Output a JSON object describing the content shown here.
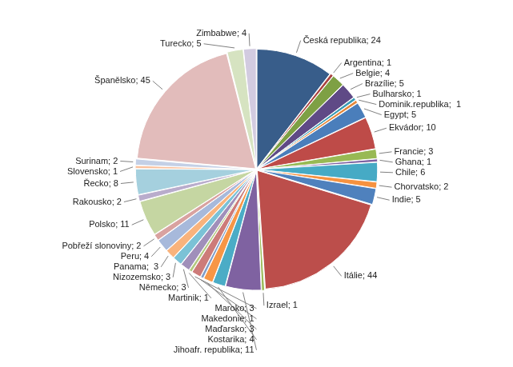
{
  "chart_data": {
    "type": "pie",
    "categories": [
      "Česká republika",
      "Argentina",
      "Belgie",
      "Brazílie",
      "Bulharsko",
      "Dominik.republika",
      "Egypt",
      "Ekvádor",
      "Francie",
      "Ghana",
      "Chile",
      "Chorvatsko",
      "Indie",
      "Itálie",
      "Izrael",
      "Jihoafr. republika",
      "Kostarika",
      "Maďarsko",
      "Makedonie",
      "Maroko",
      "Martinik",
      "Německo",
      "Nizozemsko",
      "Panama",
      "Peru",
      "Pobřeží slonoviny",
      "Polsko",
      "Rakousko",
      "Řecko",
      "Slovensko",
      "Surinam",
      "Španělsko",
      "Turecko",
      "Zimbabwe"
    ],
    "values": [
      24,
      1,
      4,
      5,
      1,
      1,
      5,
      10,
      3,
      1,
      6,
      2,
      5,
      44,
      1,
      11,
      4,
      3,
      1,
      3,
      1,
      3,
      3,
      3,
      4,
      2,
      11,
      2,
      8,
      1,
      2,
      45,
      5,
      4
    ],
    "value_labels": [
      "Česká republika; 24",
      "Argentina; 1",
      "Belgie; 4",
      "Brazílie; 5",
      "Bulharsko; 1",
      "Dominik.republika;  1",
      "Egypt; 5",
      "Ekvádor; 10",
      "Francie; 3",
      "Ghana; 1",
      "Chile; 6",
      "Chorvatsko; 2",
      "Indie; 5",
      "Itálie; 44",
      "Izrael; 1",
      "Jihoafr. republika; 11",
      "Kostarika; 4",
      "Maďarsko; 3",
      "Makedonie; 1",
      "Maroko; 3",
      "Martinik; 1",
      "Německo; 3",
      "Nizozemsko; 3",
      "Panama;  3",
      "Peru; 4",
      "Pobřeží slonoviny; 2",
      "Polsko; 11",
      "Rakousko; 2",
      "Řecko; 8",
      "Slovensko; 1",
      "Surinam; 2",
      "Španělsko; 45",
      "Turecko; 5",
      "Zimbabwe; 4"
    ],
    "colors": [
      "#385d8a",
      "#a9423f",
      "#7ea044",
      "#5f4a86",
      "#3a9bb4",
      "#e5873a",
      "#4a7ebb",
      "#be4b48",
      "#98b954",
      "#7d60a0",
      "#46aac5",
      "#f69240",
      "#4f81bd",
      "#bc4e4b",
      "#9bbb59",
      "#7f62a1",
      "#4bacc6",
      "#f79646",
      "#7f9cc8",
      "#cd7b79",
      "#b3c97f",
      "#a08fba",
      "#7bc2d6",
      "#f9b37c",
      "#a7b9db",
      "#d9a2a0",
      "#c5d6a2",
      "#b9accc",
      "#a5d0de",
      "#fac19d",
      "#c4d0e6",
      "#e2bcbb",
      "#d6e3c1",
      "#d2cbe0"
    ],
    "data_labels": true,
    "legend": false
  }
}
